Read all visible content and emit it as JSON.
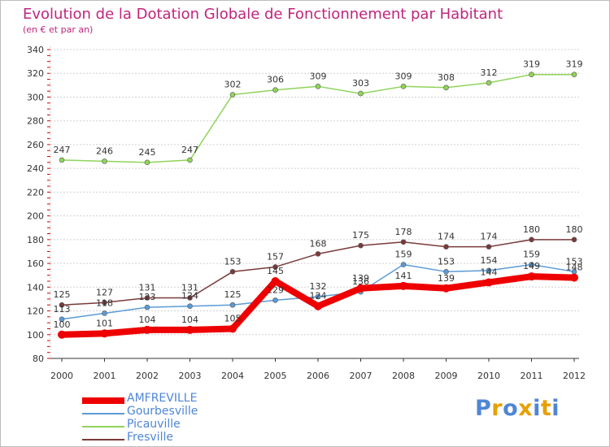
{
  "colors": {
    "title": "#c0257c",
    "axis": "#333333",
    "grid": "#d0d0d0",
    "tick_red": "#cc0000",
    "legend_text": "#4f86d6"
  },
  "logo": {
    "letters": [
      "P",
      "r",
      "o",
      "x",
      "i",
      "t",
      "i"
    ],
    "colors": [
      "#4f86d6",
      "#e8a000",
      "#4f86d6",
      "#e8a000",
      "#4f86d6",
      "#e8a000",
      "#4f86d6"
    ]
  },
  "chart_data": {
    "type": "line",
    "title": "Evolution de la Dotation Globale de Fonctionnement par Habitant",
    "subtitle": "(en € et par an)",
    "xlabel": "",
    "ylabel": "",
    "ylim": [
      80,
      340
    ],
    "y_ticks": [
      "80",
      "100",
      "120",
      "140",
      "160",
      "180",
      "200",
      "220",
      "240",
      "260",
      "280",
      "300",
      "320",
      "340"
    ],
    "y_tick_values": [
      80,
      100,
      120,
      140,
      160,
      180,
      200,
      220,
      240,
      260,
      280,
      300,
      320,
      340
    ],
    "categories": [
      "2000",
      "2001",
      "2002",
      "2003",
      "2004",
      "2005",
      "2006",
      "2007",
      "2008",
      "2009",
      "2010",
      "2011",
      "2012"
    ],
    "grid": true,
    "legend_position": "bottom-left",
    "series": [
      {
        "name": "AMFREVILLE",
        "color": "#ee0000",
        "values": [
          100,
          101,
          104,
          104,
          105,
          145,
          124,
          139,
          141,
          139,
          144,
          149,
          148
        ],
        "labels": [
          "100",
          "101",
          "104",
          "104",
          "105",
          "145",
          "124",
          "139",
          "141",
          "139",
          "144",
          "149",
          "148"
        ]
      },
      {
        "name": "Gourbesville",
        "color": "#5b9bd5",
        "values": [
          113,
          118,
          123,
          124,
          125,
          129,
          132,
          136,
          159,
          153,
          154,
          159,
          153
        ],
        "labels": [
          "113",
          "118",
          "123",
          "124",
          "125",
          "129",
          "132",
          "136",
          "159",
          "153",
          "154",
          "159",
          "153"
        ]
      },
      {
        "name": "Picauville",
        "color": "#8fd45a",
        "values": [
          247,
          246,
          245,
          247,
          302,
          306,
          309,
          303,
          309,
          308,
          312,
          319,
          319
        ],
        "labels": [
          "247",
          "246",
          "245",
          "247",
          "302",
          "306",
          "309",
          "303",
          "309",
          "308",
          "312",
          "319",
          "319"
        ]
      },
      {
        "name": "Fresville",
        "color": "#7a3a3a",
        "values": [
          125,
          127,
          131,
          131,
          153,
          157,
          168,
          175,
          178,
          174,
          174,
          180,
          180
        ],
        "labels": [
          "125",
          "127",
          "131",
          "131",
          "153",
          "157",
          "168",
          "175",
          "178",
          "174",
          "174",
          "180",
          "180"
        ]
      }
    ]
  }
}
